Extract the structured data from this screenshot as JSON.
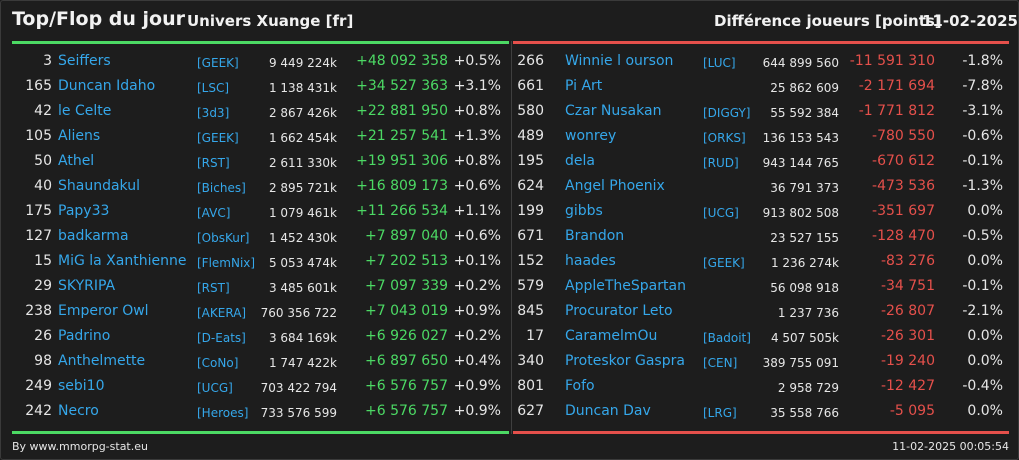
{
  "header": {
    "title": "Top/Flop du jour",
    "universe": "Univers Xuange [fr]",
    "metric": "Différence joueurs [points]",
    "date": "11-02-2025"
  },
  "colors": {
    "background": "#1d1d1d",
    "top_accent": "#4cd964",
    "flop_accent": "#e5504b",
    "link_blue": "#35a7ea",
    "text": "#e6e6e6"
  },
  "top": [
    {
      "rank": "3",
      "name": "Seiffers",
      "alliance": "[GEEK]",
      "points": "9 449 224k",
      "diff": "+48 092 358",
      "pct": "+0.5%"
    },
    {
      "rank": "165",
      "name": "Duncan Idaho",
      "alliance": "[LSC]",
      "points": "1 138 431k",
      "diff": "+34 527 363",
      "pct": "+3.1%"
    },
    {
      "rank": "42",
      "name": "le Celte",
      "alliance": "[3d3]",
      "points": "2 867 426k",
      "diff": "+22 881 950",
      "pct": "+0.8%"
    },
    {
      "rank": "105",
      "name": "Aliens",
      "alliance": "[GEEK]",
      "points": "1 662 454k",
      "diff": "+21 257 541",
      "pct": "+1.3%"
    },
    {
      "rank": "50",
      "name": "Athel",
      "alliance": "[RST]",
      "points": "2 611 330k",
      "diff": "+19 951 306",
      "pct": "+0.8%"
    },
    {
      "rank": "40",
      "name": "Shaundakul",
      "alliance": "[Biches]",
      "points": "2 895 721k",
      "diff": "+16 809 173",
      "pct": "+0.6%"
    },
    {
      "rank": "175",
      "name": "Papy33",
      "alliance": "[AVC]",
      "points": "1 079 461k",
      "diff": "+11 266 534",
      "pct": "+1.1%"
    },
    {
      "rank": "127",
      "name": "badkarma",
      "alliance": "[ObsKur]",
      "points": "1 452 430k",
      "diff": "+7 897 040",
      "pct": "+0.6%"
    },
    {
      "rank": "15",
      "name": "MiG la Xanthienne",
      "alliance": "[FlemNix]",
      "points": "5 053 474k",
      "diff": "+7 202 513",
      "pct": "+0.1%"
    },
    {
      "rank": "29",
      "name": "SKYRIPA",
      "alliance": "[RST]",
      "points": "3 485 601k",
      "diff": "+7 097 339",
      "pct": "+0.2%"
    },
    {
      "rank": "238",
      "name": "Emperor Owl",
      "alliance": "[AKERA]",
      "points": "760 356 722",
      "diff": "+7 043 019",
      "pct": "+0.9%"
    },
    {
      "rank": "26",
      "name": "Padrino",
      "alliance": "[D-Eats]",
      "points": "3 684 169k",
      "diff": "+6 926 027",
      "pct": "+0.2%"
    },
    {
      "rank": "98",
      "name": "Anthelmette",
      "alliance": "[CoNo]",
      "points": "1 747 422k",
      "diff": "+6 897 650",
      "pct": "+0.4%"
    },
    {
      "rank": "249",
      "name": "sebi10",
      "alliance": "[UCG]",
      "points": "703 422 794",
      "diff": "+6 576 757",
      "pct": "+0.9%"
    },
    {
      "rank": "242",
      "name": "Necro",
      "alliance": "[Heroes]",
      "points": "733 576 599",
      "diff": "+6 576 757",
      "pct": "+0.9%"
    }
  ],
  "flop": [
    {
      "rank": "266",
      "name": "Winnie l ourson",
      "alliance": "[LUC]",
      "points": "644 899 560",
      "diff": "-11 591 310",
      "pct": "-1.8%"
    },
    {
      "rank": "661",
      "name": "Pi Art",
      "alliance": "",
      "points": "25 862 609",
      "diff": "-2 171 694",
      "pct": "-7.8%"
    },
    {
      "rank": "580",
      "name": "Czar Nusakan",
      "alliance": "[DIGGY]",
      "points": "55 592 384",
      "diff": "-1 771 812",
      "pct": "-3.1%"
    },
    {
      "rank": "489",
      "name": "wonrey",
      "alliance": "[ORKS]",
      "points": "136 153 543",
      "diff": "-780 550",
      "pct": "-0.6%"
    },
    {
      "rank": "195",
      "name": "dela",
      "alliance": "[RUD]",
      "points": "943 144 765",
      "diff": "-670 612",
      "pct": "-0.1%"
    },
    {
      "rank": "624",
      "name": "Angel Phoenix",
      "alliance": "",
      "points": "36 791 373",
      "diff": "-473 536",
      "pct": "-1.3%"
    },
    {
      "rank": "199",
      "name": "gibbs",
      "alliance": "[UCG]",
      "points": "913 802 508",
      "diff": "-351 697",
      "pct": "0.0%"
    },
    {
      "rank": "671",
      "name": "Brandon",
      "alliance": "",
      "points": "23 527 155",
      "diff": "-128 470",
      "pct": "-0.5%"
    },
    {
      "rank": "152",
      "name": "haades",
      "alliance": "[GEEK]",
      "points": "1 236 274k",
      "diff": "-83 276",
      "pct": "0.0%"
    },
    {
      "rank": "579",
      "name": "AppleTheSpartan",
      "alliance": "",
      "points": "56 098 918",
      "diff": "-34 751",
      "pct": "-0.1%"
    },
    {
      "rank": "845",
      "name": "Procurator Leto",
      "alliance": "",
      "points": "1 237 736",
      "diff": "-26 807",
      "pct": "-2.1%"
    },
    {
      "rank": "17",
      "name": "CaramelmOu",
      "alliance": "[Badoit]",
      "points": "4 507 505k",
      "diff": "-26 301",
      "pct": "0.0%"
    },
    {
      "rank": "340",
      "name": "Proteskor Gaspra",
      "alliance": "[CEN]",
      "points": "389 755 091",
      "diff": "-19 240",
      "pct": "0.0%"
    },
    {
      "rank": "801",
      "name": "Fofo",
      "alliance": "",
      "points": "2 958 729",
      "diff": "-12 427",
      "pct": "-0.4%"
    },
    {
      "rank": "627",
      "name": "Duncan Dav",
      "alliance": "[LRG]",
      "points": "35 558 766",
      "diff": "-5 095",
      "pct": "0.0%"
    }
  ],
  "footer": {
    "credit": "By www.mmorpg-stat.eu",
    "timestamp": "11-02-2025 00:05:54"
  }
}
